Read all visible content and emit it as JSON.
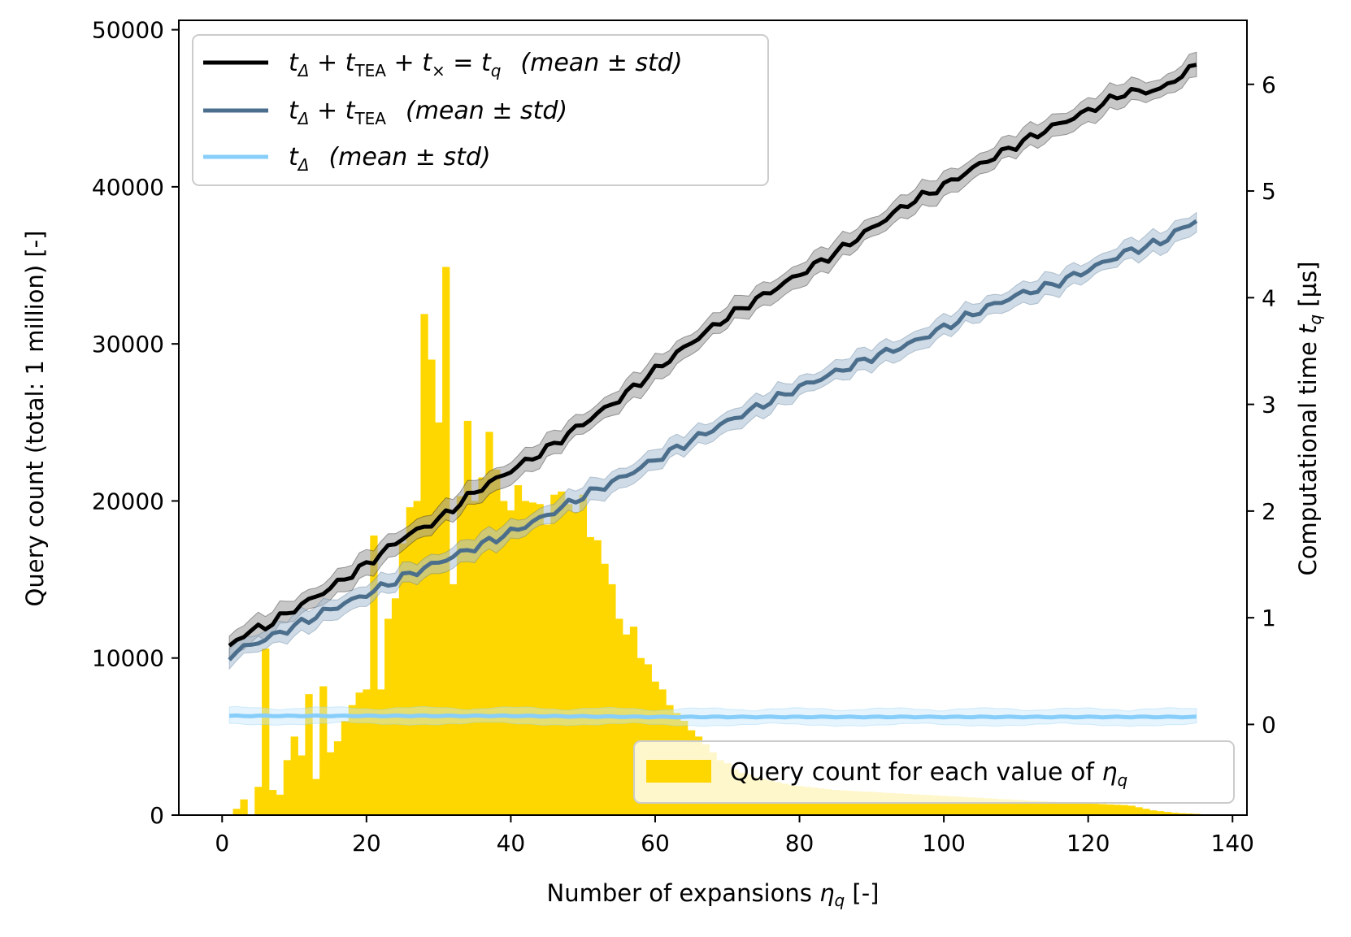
{
  "chart_data": {
    "type": "bar+line",
    "xlabel": "Number of expansions η_q [-]",
    "ylabel_left": "Query count (total: 1 million) [-]",
    "ylabel_right": "Computational time t_q [µs]",
    "xlim": [
      -6,
      142
    ],
    "ylim_left": [
      0,
      50600
    ],
    "ylim_right": [
      -0.85,
      6.6
    ],
    "x_ticks": [
      0,
      20,
      40,
      60,
      80,
      100,
      120,
      140
    ],
    "y_left_ticks": [
      0,
      10000,
      20000,
      30000,
      40000,
      50000
    ],
    "y_right_ticks": [
      0,
      1,
      2,
      3,
      4,
      5,
      6
    ],
    "histogram": {
      "name": "Query count for each value of η_q",
      "color": "#FFD700",
      "values": [
        0,
        400,
        1000,
        0,
        1800,
        10600,
        1600,
        1300,
        3500,
        5000,
        3800,
        7700,
        2300,
        8200,
        4000,
        4700,
        6000,
        7000,
        7800,
        8000,
        17800,
        8000,
        12500,
        13800,
        17300,
        19600,
        20000,
        31900,
        29000,
        25000,
        34900,
        14700,
        20300,
        25100,
        20000,
        21500,
        24400,
        22000,
        20000,
        19400,
        21000,
        20000,
        19900,
        19800,
        18500,
        20400,
        20600,
        19800,
        19300,
        20400,
        17700,
        17500,
        16000,
        14700,
        12500,
        11500,
        12000,
        10000,
        9600,
        8500,
        8000,
        7000,
        6500,
        6000,
        5400,
        5000,
        4500,
        4000,
        3500,
        3300,
        2900,
        2700,
        2600,
        2400,
        2300,
        2200,
        2100,
        2000,
        1900,
        1850,
        1800,
        1750,
        1700,
        1650,
        1600,
        1580,
        1550,
        1520,
        1500,
        1480,
        1450,
        1420,
        1400,
        1380,
        1350,
        1320,
        1300,
        1280,
        1250,
        1230,
        1200,
        1180,
        1150,
        1120,
        1100,
        1080,
        1050,
        1020,
        1000,
        980,
        950,
        920,
        900,
        870,
        850,
        820,
        800,
        780,
        760,
        740,
        720,
        700,
        680,
        660,
        640,
        600,
        500,
        400,
        300,
        250,
        200,
        150,
        120,
        100,
        80
      ]
    },
    "series": [
      {
        "name": "t_Δ + t_TEA + t_× = t_q (mean ± std)",
        "color": "#000000",
        "band_color": "#999999",
        "points": [
          [
            1,
            0.72
          ],
          [
            3,
            0.85
          ],
          [
            6,
            0.92
          ],
          [
            10,
            1.08
          ],
          [
            15,
            1.28
          ],
          [
            20,
            1.5
          ],
          [
            25,
            1.75
          ],
          [
            30,
            1.92
          ],
          [
            35,
            2.18
          ],
          [
            40,
            2.38
          ],
          [
            45,
            2.58
          ],
          [
            50,
            2.82
          ],
          [
            55,
            3.05
          ],
          [
            60,
            3.32
          ],
          [
            65,
            3.58
          ],
          [
            70,
            3.82
          ],
          [
            75,
            4.02
          ],
          [
            80,
            4.22
          ],
          [
            85,
            4.42
          ],
          [
            90,
            4.65
          ],
          [
            95,
            4.88
          ],
          [
            100,
            5.05
          ],
          [
            105,
            5.25
          ],
          [
            110,
            5.43
          ],
          [
            115,
            5.6
          ],
          [
            120,
            5.75
          ],
          [
            125,
            5.92
          ],
          [
            130,
            5.95
          ],
          [
            135,
            6.18
          ]
        ],
        "std": 0.1
      },
      {
        "name": "t_Δ + t_TEA (mean ± std)",
        "color": "#4B6E8C",
        "band_color": "#A8BDD1",
        "points": [
          [
            1,
            0.64
          ],
          [
            3,
            0.72
          ],
          [
            6,
            0.8
          ],
          [
            10,
            0.92
          ],
          [
            15,
            1.08
          ],
          [
            20,
            1.22
          ],
          [
            25,
            1.38
          ],
          [
            30,
            1.52
          ],
          [
            35,
            1.66
          ],
          [
            40,
            1.8
          ],
          [
            45,
            1.96
          ],
          [
            50,
            2.14
          ],
          [
            55,
            2.3
          ],
          [
            60,
            2.48
          ],
          [
            65,
            2.66
          ],
          [
            70,
            2.84
          ],
          [
            75,
            3.0
          ],
          [
            80,
            3.16
          ],
          [
            85,
            3.3
          ],
          [
            90,
            3.44
          ],
          [
            95,
            3.56
          ],
          [
            100,
            3.72
          ],
          [
            105,
            3.88
          ],
          [
            110,
            4.02
          ],
          [
            115,
            4.12
          ],
          [
            120,
            4.26
          ],
          [
            125,
            4.42
          ],
          [
            130,
            4.52
          ],
          [
            135,
            4.73
          ]
        ],
        "std": 0.09
      },
      {
        "name": "t_Δ (mean ± std)",
        "color": "#87CEFA",
        "band_color": "#C6E6FB",
        "points": [
          [
            1,
            0.08
          ],
          [
            10,
            0.08
          ],
          [
            20,
            0.08
          ],
          [
            40,
            0.08
          ],
          [
            60,
            0.07
          ],
          [
            80,
            0.07
          ],
          [
            100,
            0.07
          ],
          [
            120,
            0.07
          ],
          [
            135,
            0.07
          ]
        ],
        "std": 0.07
      }
    ],
    "legend_upper": {
      "position": "top-left",
      "entries": [
        {
          "math": "t_Δ + t_TEA + t_× = t_q",
          "suffix": "(mean ± std)"
        },
        {
          "math": "t_Δ + t_TEA",
          "suffix": "(mean ± std)"
        },
        {
          "math": "t_Δ",
          "suffix": "(mean ± std)"
        }
      ]
    },
    "legend_lower": {
      "position": "bottom-right",
      "entries": [
        {
          "label": "Query count for each value of η_q"
        }
      ]
    }
  },
  "text": {
    "xlabel_main": "Number of expansions ",
    "xlabel_var": "η",
    "xlabel_sub": "q",
    "xlabel_unit": " [-]",
    "ylabel_left": "Query count (total: 1 million) [-]",
    "ylabel_right_main": "Computational time ",
    "ylabel_right_var": "t",
    "ylabel_right_sub": "q",
    "ylabel_right_unit": " [µs]",
    "leg1_part_a": "t",
    "leg1_sub_a": "Δ",
    "leg1_plus1": " + ",
    "leg1_part_b": "t",
    "leg1_sub_b": "TEA",
    "leg1_plus2": " + ",
    "leg1_part_c": "t",
    "leg1_sub_c": "×",
    "leg1_eq": " = ",
    "leg1_part_d": "t",
    "leg1_sub_d": "q",
    "leg1_suffix": "(mean ± std)",
    "leg2_part_a": "t",
    "leg2_sub_a": "Δ",
    "leg2_plus1": " + ",
    "leg2_part_b": "t",
    "leg2_sub_b": "TEA",
    "leg2_suffix": "(mean ± std)",
    "leg3_part_a": "t",
    "leg3_sub_a": "Δ",
    "leg3_suffix": "(mean ± std)",
    "hist_label_main": "Query count for each value of ",
    "hist_label_var": "η",
    "hist_label_sub": "q"
  }
}
